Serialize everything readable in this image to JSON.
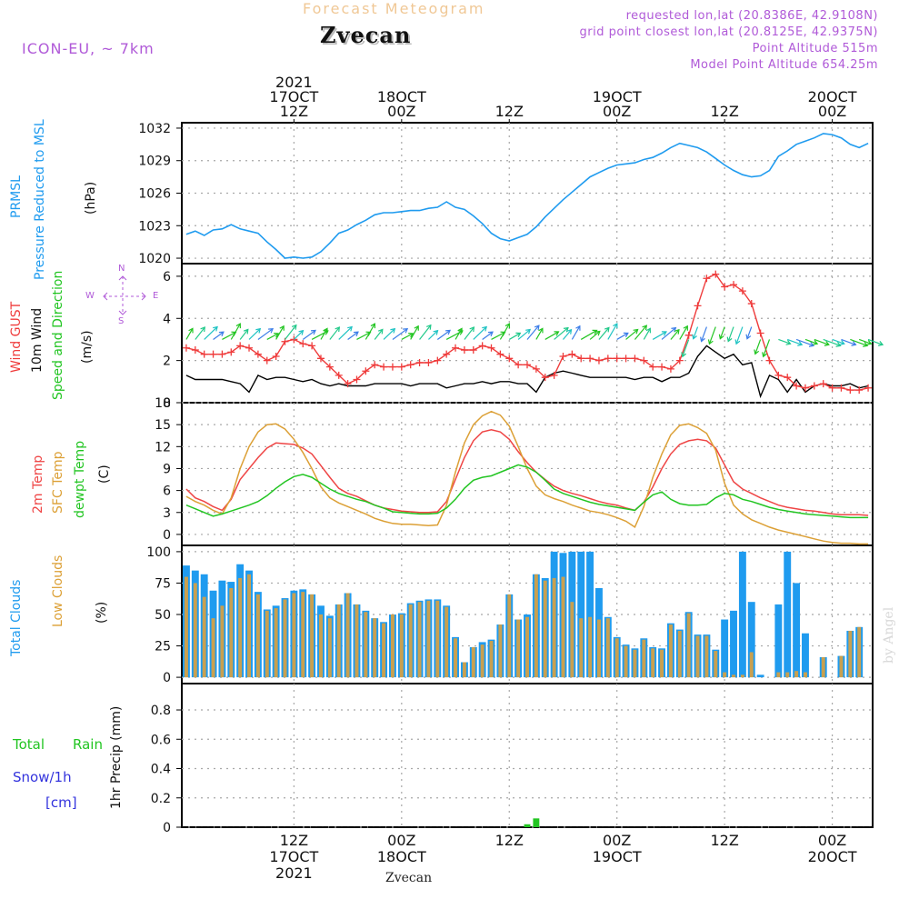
{
  "header": {
    "product": "Forecast Meteogram",
    "location": "Zvecan",
    "model": "ICON-EU, ~ 7km",
    "requested": "requested lon,lat (20.8386E, 42.9108N)",
    "gridpoint": "grid point closest lon,lat (20.8125E, 42.9375N)",
    "point_alt": "Point Altitude 515m",
    "model_alt": "Model Point Altitude 654.25m",
    "footer_location": "Zvecan",
    "watermark": "by Angel"
  },
  "colors": {
    "pressure": "#1f9bef",
    "gust": "#ef3b3b",
    "wind": "#000000",
    "dir": "#22c522",
    "t2m": "#ef4545",
    "sfc": "#dca036",
    "dew": "#22c522",
    "total_clouds": "#1f9bef",
    "low_clouds": "#c8a050",
    "rain": "#22c522",
    "snow": "#3333dd",
    "purple": "#b05ad8",
    "grid": "#a8a8a8"
  },
  "time_axis": {
    "top_ticks": [
      {
        "x_hour": 12,
        "lines": [
          "2021",
          "17OCT",
          "12Z"
        ]
      },
      {
        "x_hour": 24,
        "lines": [
          "18OCT",
          "00Z"
        ]
      },
      {
        "x_hour": 36,
        "lines": [
          "12Z"
        ]
      },
      {
        "x_hour": 48,
        "lines": [
          "19OCT",
          "00Z"
        ]
      },
      {
        "x_hour": 60,
        "lines": [
          "12Z"
        ]
      },
      {
        "x_hour": 72,
        "lines": [
          "20OCT",
          "00Z"
        ]
      }
    ],
    "bottom_ticks": [
      {
        "x_hour": 12,
        "lines": [
          "12Z",
          "17OCT",
          "2021"
        ]
      },
      {
        "x_hour": 24,
        "lines": [
          "00Z",
          "18OCT"
        ]
      },
      {
        "x_hour": 36,
        "lines": [
          "12Z"
        ]
      },
      {
        "x_hour": 48,
        "lines": [
          "00Z",
          "19OCT"
        ]
      },
      {
        "x_hour": 60,
        "lines": [
          "12Z"
        ]
      },
      {
        "x_hour": 72,
        "lines": [
          "00Z",
          "20OCT"
        ]
      }
    ]
  },
  "panel_labels": {
    "pressure": {
      "name": "PRMSL",
      "desc": "Pressure Reduced to MSL",
      "unit": "(hPa)"
    },
    "wind": {
      "gust": "Wind GUST",
      "wind": "10m Wind",
      "dir": "Speed and Direction",
      "unit": "(m/s)",
      "compass_n": "N",
      "compass_s": "S",
      "compass_w": "W",
      "compass_e": "E"
    },
    "temp": {
      "t2m": "2m Temp",
      "sfc": "SFC Temp",
      "dew": "dewpt Temp",
      "unit": "(C)"
    },
    "clouds": {
      "total": "Total Clouds",
      "low": "Low Clouds",
      "unit": "(%)"
    },
    "precip": {
      "rain": "Total",
      "rain2": "Rain",
      "snow": "Snow/1h",
      "snow_unit": "[cm]",
      "ylabel": "1hr Precip (mm)"
    }
  },
  "chart_data": [
    {
      "type": "line",
      "title": "PRMSL Pressure Reduced to MSL",
      "ylabel": "hPa",
      "ylim": [
        1019.5,
        1032.5
      ],
      "yticks": [
        1020,
        1023,
        1026,
        1029,
        1032
      ],
      "x_hours": [
        0,
        1,
        2,
        3,
        4,
        5,
        6,
        7,
        8,
        9,
        10,
        11,
        12,
        13,
        14,
        15,
        16,
        17,
        18,
        19,
        20,
        21,
        22,
        23,
        24,
        25,
        26,
        27,
        28,
        29,
        30,
        31,
        32,
        33,
        34,
        35,
        36,
        37,
        38,
        39,
        40,
        41,
        42,
        43,
        44,
        45,
        46,
        47,
        48,
        49,
        50,
        51,
        52,
        53,
        54,
        55,
        56,
        57,
        58,
        59,
        60,
        61,
        62,
        63,
        64,
        65,
        66,
        67,
        68,
        69,
        70,
        71,
        72,
        73,
        74,
        75,
        76
      ],
      "values": [
        1022.2,
        1022.5,
        1022.1,
        1022.6,
        1022.7,
        1023.1,
        1022.7,
        1022.5,
        1022.3,
        1021.5,
        1020.8,
        1020.0,
        1020.1,
        1020.0,
        1020.1,
        1020.6,
        1021.4,
        1022.3,
        1022.6,
        1023.1,
        1023.5,
        1024.0,
        1024.2,
        1024.2,
        1024.3,
        1024.4,
        1024.4,
        1024.6,
        1024.7,
        1025.2,
        1024.7,
        1024.5,
        1023.9,
        1023.2,
        1022.3,
        1021.8,
        1021.6,
        1021.9,
        1022.2,
        1022.9,
        1023.8,
        1024.6,
        1025.4,
        1026.1,
        1026.8,
        1027.5,
        1027.9,
        1028.3,
        1028.6,
        1028.7,
        1028.8,
        1029.1,
        1029.3,
        1029.7,
        1030.2,
        1030.6,
        1030.4,
        1030.2,
        1029.8,
        1029.2,
        1028.6,
        1028.1,
        1027.7,
        1027.5,
        1027.6,
        1028.1,
        1029.4,
        1029.9,
        1030.5,
        1030.8,
        1031.1,
        1031.5,
        1031.4,
        1031.1,
        1030.5,
        1030.2,
        1030.6
      ],
      "series": [
        {
          "name": "PRMSL",
          "color_key": "pressure"
        }
      ]
    },
    {
      "type": "line",
      "title": "Wind GUST / 10m Wind Speed and Direction",
      "ylabel": "m/s",
      "ylim": [
        0,
        6.6
      ],
      "yticks": [
        0,
        2,
        4,
        6
      ],
      "x_hours": [
        0,
        1,
        2,
        3,
        4,
        5,
        6,
        7,
        8,
        9,
        10,
        11,
        12,
        13,
        14,
        15,
        16,
        17,
        18,
        19,
        20,
        21,
        22,
        23,
        24,
        25,
        26,
        27,
        28,
        29,
        30,
        31,
        32,
        33,
        34,
        35,
        36,
        37,
        38,
        39,
        40,
        41,
        42,
        43,
        44,
        45,
        46,
        47,
        48,
        49,
        50,
        51,
        52,
        53,
        54,
        55,
        56,
        57,
        58,
        59,
        60,
        61,
        62,
        63,
        64,
        65,
        66,
        67,
        68,
        69,
        70,
        71,
        72,
        73,
        74,
        75,
        76
      ],
      "series": [
        {
          "name": "Wind GUST",
          "color_key": "gust",
          "marker": "+",
          "values": [
            2.6,
            2.5,
            2.3,
            2.3,
            2.3,
            2.4,
            2.7,
            2.6,
            2.3,
            2.0,
            2.2,
            2.9,
            3.0,
            2.8,
            2.7,
            2.1,
            1.7,
            1.3,
            0.9,
            1.1,
            1.5,
            1.8,
            1.7,
            1.7,
            1.7,
            1.8,
            1.9,
            1.9,
            2.0,
            2.3,
            2.6,
            2.5,
            2.5,
            2.7,
            2.6,
            2.3,
            2.1,
            1.8,
            1.8,
            1.6,
            1.2,
            1.3,
            2.2,
            2.3,
            2.1,
            2.1,
            2.0,
            2.1,
            2.1,
            2.1,
            2.1,
            2.0,
            1.7,
            1.7,
            1.6,
            2.0,
            3.2,
            4.6,
            5.9,
            6.1,
            5.5,
            5.6,
            5.3,
            4.7,
            3.3,
            2.0,
            1.3,
            1.2,
            0.8,
            0.7,
            0.8,
            0.9,
            0.7,
            0.7,
            0.6,
            0.6,
            0.7
          ]
        },
        {
          "name": "10m Wind",
          "color_key": "wind",
          "values": [
            1.3,
            1.1,
            1.1,
            1.1,
            1.1,
            1.0,
            0.9,
            0.5,
            1.3,
            1.1,
            1.2,
            1.2,
            1.1,
            1.0,
            1.1,
            0.9,
            0.8,
            0.9,
            0.8,
            0.8,
            0.8,
            0.9,
            0.9,
            0.9,
            0.9,
            0.8,
            0.9,
            0.9,
            0.9,
            0.7,
            0.8,
            0.9,
            0.9,
            1.0,
            0.9,
            1.0,
            1.0,
            0.9,
            0.9,
            0.5,
            1.2,
            1.4,
            1.5,
            1.4,
            1.3,
            1.2,
            1.2,
            1.2,
            1.2,
            1.2,
            1.1,
            1.2,
            1.2,
            1.0,
            1.2,
            1.2,
            1.4,
            2.2,
            2.7,
            2.4,
            2.1,
            2.3,
            1.8,
            1.9,
            0.3,
            1.3,
            1.1,
            0.5,
            1.1,
            0.5,
            0.8,
            0.9,
            0.8,
            0.8,
            0.9,
            0.7,
            0.8
          ]
        }
      ],
      "direction_arrows": {
        "start_hour": 0,
        "end_hour": 76,
        "note": "arrows drawn along the top of the wind panel; green/teal speed colours"
      }
    },
    {
      "type": "line",
      "title": "2m Temp / SFC Temp / dewpt Temp",
      "ylabel": "C",
      "ylim": [
        -1.5,
        18
      ],
      "yticks": [
        0,
        3,
        6,
        9,
        12,
        15,
        18
      ],
      "x_hours": [
        0,
        1,
        2,
        3,
        4,
        5,
        6,
        7,
        8,
        9,
        10,
        11,
        12,
        13,
        14,
        15,
        16,
        17,
        18,
        19,
        20,
        21,
        22,
        23,
        24,
        25,
        26,
        27,
        28,
        29,
        30,
        31,
        32,
        33,
        34,
        35,
        36,
        37,
        38,
        39,
        40,
        41,
        42,
        43,
        44,
        45,
        46,
        47,
        48,
        49,
        50,
        51,
        52,
        53,
        54,
        55,
        56,
        57,
        58,
        59,
        60,
        61,
        62,
        63,
        64,
        65,
        66,
        67,
        68,
        69,
        70,
        71,
        72,
        73,
        74,
        75,
        76
      ],
      "series": [
        {
          "name": "2m Temp",
          "color_key": "t2m",
          "values": [
            6.2,
            5.0,
            4.5,
            3.8,
            3.3,
            4.8,
            7.5,
            9.0,
            10.5,
            11.8,
            12.5,
            12.4,
            12.3,
            11.8,
            11.0,
            9.4,
            7.8,
            6.3,
            5.6,
            5.2,
            4.6,
            4.0,
            3.6,
            3.4,
            3.2,
            3.1,
            3.0,
            3.0,
            3.1,
            4.5,
            7.5,
            10.5,
            12.8,
            14.0,
            14.3,
            14.0,
            13.0,
            11.3,
            9.8,
            8.5,
            7.5,
            6.6,
            6.0,
            5.6,
            5.3,
            4.9,
            4.5,
            4.2,
            4.0,
            3.6,
            3.3,
            4.4,
            6.5,
            9.0,
            11.0,
            12.3,
            12.8,
            13.0,
            12.8,
            11.8,
            9.5,
            7.2,
            6.2,
            5.6,
            5.0,
            4.5,
            4.0,
            3.7,
            3.5,
            3.3,
            3.2,
            3.0,
            2.8,
            2.7,
            2.7,
            2.7,
            2.6
          ]
        },
        {
          "name": "SFC Temp",
          "color_key": "sfc",
          "values": [
            5.2,
            4.5,
            4.0,
            3.3,
            2.8,
            5.0,
            9.0,
            12.0,
            14.0,
            15.0,
            15.1,
            14.4,
            13.0,
            11.2,
            9.0,
            6.5,
            5.0,
            4.3,
            3.8,
            3.3,
            2.8,
            2.2,
            1.8,
            1.5,
            1.4,
            1.4,
            1.3,
            1.2,
            1.3,
            4.0,
            8.5,
            12.5,
            15.0,
            16.2,
            16.8,
            16.3,
            14.8,
            12.0,
            9.0,
            6.6,
            5.4,
            4.9,
            4.5,
            4.0,
            3.6,
            3.2,
            3.0,
            2.7,
            2.3,
            1.8,
            1.0,
            3.8,
            7.8,
            11.0,
            13.6,
            14.9,
            15.1,
            14.6,
            13.8,
            11.5,
            7.0,
            4.0,
            2.8,
            2.0,
            1.5,
            1.0,
            0.6,
            0.3,
            0.0,
            -0.3,
            -0.6,
            -0.9,
            -1.1,
            -1.2,
            -1.2,
            -1.3,
            -1.3
          ]
        },
        {
          "name": "dewpt Temp",
          "color_key": "dew",
          "values": [
            4.0,
            3.5,
            3.0,
            2.5,
            2.8,
            3.2,
            3.6,
            4.0,
            4.5,
            5.3,
            6.3,
            7.2,
            7.9,
            8.2,
            7.8,
            7.0,
            6.2,
            5.6,
            5.2,
            4.8,
            4.5,
            4.0,
            3.6,
            3.1,
            3.0,
            2.9,
            2.8,
            2.8,
            2.9,
            3.6,
            4.8,
            6.3,
            7.4,
            7.8,
            8.0,
            8.5,
            9.0,
            9.5,
            9.2,
            8.5,
            7.4,
            6.2,
            5.6,
            5.2,
            4.8,
            4.4,
            4.1,
            3.9,
            3.7,
            3.5,
            3.3,
            4.4,
            5.4,
            5.8,
            4.8,
            4.2,
            4.0,
            4.0,
            4.1,
            5.0,
            5.6,
            5.4,
            4.8,
            4.5,
            4.1,
            3.7,
            3.4,
            3.2,
            3.0,
            2.8,
            2.7,
            2.6,
            2.5,
            2.4,
            2.3,
            2.3,
            2.3
          ]
        }
      ]
    },
    {
      "type": "bar",
      "title": "Total Clouds / Low Clouds",
      "ylabel": "%",
      "ylim": [
        -5,
        105
      ],
      "yticks": [
        0,
        25,
        50,
        75,
        100
      ],
      "x_hours": [
        0,
        1,
        2,
        3,
        4,
        5,
        6,
        7,
        8,
        9,
        10,
        11,
        12,
        13,
        14,
        15,
        16,
        17,
        18,
        19,
        20,
        21,
        22,
        23,
        24,
        25,
        26,
        27,
        28,
        29,
        30,
        31,
        32,
        33,
        34,
        35,
        36,
        37,
        38,
        39,
        40,
        41,
        42,
        43,
        44,
        45,
        46,
        47,
        48,
        49,
        50,
        51,
        52,
        53,
        54,
        55,
        56,
        57,
        58,
        59,
        60,
        61,
        62,
        63,
        64,
        65,
        66,
        67,
        68,
        69,
        70,
        71,
        72,
        73,
        74,
        75,
        76
      ],
      "series": [
        {
          "name": "Total Clouds",
          "color_key": "total_clouds",
          "values": [
            89,
            85,
            82,
            69,
            77,
            76,
            90,
            85,
            68,
            54,
            57,
            63,
            69,
            70,
            66,
            57,
            49,
            58,
            67,
            58,
            53,
            47,
            44,
            50,
            51,
            59,
            61,
            62,
            62,
            57,
            32,
            12,
            24,
            28,
            30,
            42,
            66,
            46,
            50,
            82,
            79,
            100,
            99,
            100,
            100,
            100,
            71,
            48,
            32,
            26,
            23,
            31,
            24,
            23,
            43,
            38,
            52,
            34,
            34,
            22,
            46,
            53,
            100,
            60,
            2,
            0,
            58,
            100,
            75,
            35,
            0,
            16,
            0,
            17,
            37,
            40,
            0
          ],
          "low_values": [
            80,
            75,
            64,
            47,
            57,
            71,
            79,
            82,
            66,
            53,
            55,
            62,
            67,
            68,
            66,
            50,
            47,
            58,
            67,
            58,
            52,
            47,
            43,
            50,
            50,
            58,
            60,
            61,
            61,
            56,
            31,
            12,
            24,
            26,
            29,
            42,
            66,
            46,
            48,
            82,
            77,
            79,
            80,
            60,
            47,
            48,
            46,
            47,
            31,
            25,
            22,
            30,
            23,
            22,
            42,
            37,
            51,
            33,
            33,
            21,
            4,
            2,
            2,
            20,
            0,
            0,
            4,
            4,
            5,
            4,
            0,
            16,
            0,
            17,
            37,
            40,
            0
          ]
        }
      ]
    },
    {
      "type": "bar",
      "title": "1hr Precip",
      "ylabel": "1hr Precip (mm)",
      "ylim": [
        0,
        0.98
      ],
      "yticks": [
        0,
        0.2,
        0.4,
        0.6,
        0.8
      ],
      "ytick_labels": [
        "0",
        "0.2",
        "0.4",
        "0.6",
        "0.8"
      ],
      "x_hours": [
        38,
        39
      ],
      "series": [
        {
          "name": "Total Rain",
          "color_key": "rain",
          "values": [
            0.02,
            0.06
          ]
        },
        {
          "name": "Snow/1h",
          "color_key": "snow",
          "values": [
            0,
            0
          ]
        }
      ]
    }
  ]
}
